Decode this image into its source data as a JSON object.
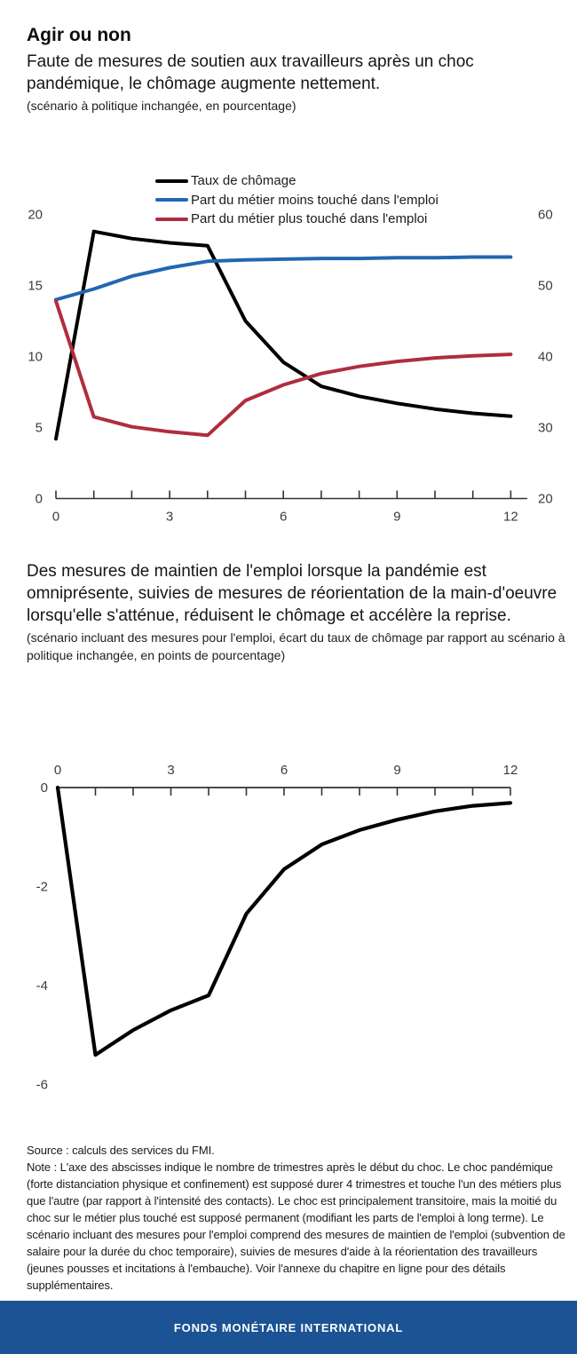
{
  "header": {
    "title": "Agir ou non",
    "subtitle": "Faute de mesures de soutien aux travailleurs après un choc pandémique, le chômage augmente nettement.",
    "caption": "(scénario à politique inchangée, en pourcentage)"
  },
  "section2": {
    "heading": "Des mesures de maintien de l'emploi lorsque la pandémie est omniprésente, suivies de mesures de réorientation de la main-d'oeuvre lorsqu'elle s'atténue, réduisent le chômage et accélère la reprise.",
    "caption": "(scénario incluant des mesures pour l'emploi, écart du taux de chômage par rapport au scénario à politique inchangée, en points de pourcentage)"
  },
  "notes": {
    "source": "Source : calculs des services du FMI.",
    "note": "Note : L'axe des abscisses indique le nombre de trimestres après le début du choc. Le choc pandémique (forte distanciation physique et confinement) est supposé durer 4 trimestres et touche l'un des métiers plus que l'autre (par rapport à l'intensité des contacts). Le choc est principalement transitoire, mais la moitié du choc sur le métier plus touché est supposé permanent (modifiant les parts de l'emploi à long terme). Le scénario incluant des mesures pour l'emploi comprend des mesures de maintien de l'emploi (subvention de salaire pour la durée du choc temporaire), suivies de mesures d'aide à la réorientation des travailleurs (jeunes pousses et incitations à l'embauche). Voir l'annexe du chapitre en ligne pour des détails supplémentaires."
  },
  "footer": {
    "label": "FONDS MONÉTAIRE INTERNATIONAL",
    "bg_color": "#1b5394"
  },
  "colors": {
    "line_black": "#000000",
    "line_blue": "#2167b1",
    "line_red": "#af2d40",
    "axis_line": "#333333",
    "axis_label": "#3c3c3c"
  },
  "chart_data": [
    {
      "type": "line",
      "title": "Faute de mesures de soutien aux travailleurs après un choc pandémique, le chômage augmente nettement.",
      "subtitle": "(scénario à politique inchangée, en pourcentage)",
      "x": [
        0,
        1,
        2,
        3,
        4,
        5,
        6,
        7,
        8,
        9,
        10,
        11,
        12
      ],
      "x_tick_labels": [
        0,
        3,
        6,
        9,
        12
      ],
      "xlabel": "trimestres après le début du choc",
      "left_axis": {
        "ticks": [
          0,
          5,
          10,
          15,
          20
        ],
        "range": [
          0,
          20
        ]
      },
      "right_axis": {
        "ticks": [
          20,
          30,
          40,
          50,
          60
        ],
        "range": [
          20,
          60
        ]
      },
      "legend_position": "top",
      "grid": false,
      "series": [
        {
          "name": "Taux de chômage",
          "axis": "left",
          "color": "#000000",
          "values": [
            4.2,
            18.8,
            18.3,
            18.0,
            17.8,
            12.5,
            9.6,
            7.9,
            7.2,
            6.7,
            6.3,
            6.0,
            5.8
          ]
        },
        {
          "name": "Part du métier moins touché dans l'emploi",
          "axis": "right",
          "color": "#2167b1",
          "values": [
            48.0,
            49.5,
            51.3,
            52.5,
            53.4,
            53.6,
            53.7,
            53.8,
            53.8,
            53.9,
            53.9,
            54.0,
            54.0
          ]
        },
        {
          "name": "Part du métier plus touché dans l'emploi",
          "axis": "right",
          "color": "#af2d40",
          "values": [
            47.8,
            31.5,
            30.1,
            29.4,
            28.9,
            33.8,
            36.0,
            37.6,
            38.6,
            39.3,
            39.8,
            40.1,
            40.3
          ]
        }
      ]
    },
    {
      "type": "line",
      "title": "Des mesures de maintien de l'emploi lorsque la pandémie est omniprésente, suivies de mesures de réorientation de la main-d'oeuvre lorsqu'elle s'atténue, réduisent le chômage et accélère la reprise.",
      "subtitle": "(scénario incluant des mesures pour l'emploi, écart du taux de chômage par rapport au scénario à politique inchangée, en points de pourcentage)",
      "x": [
        0,
        1,
        2,
        3,
        4,
        5,
        6,
        7,
        8,
        9,
        10,
        11,
        12
      ],
      "x_tick_labels": [
        0,
        3,
        6,
        9,
        12
      ],
      "xlabel": "trimestres après le début du choc",
      "x_axis_position": "top",
      "y_axis": {
        "ticks": [
          0,
          -2,
          -4,
          -6
        ],
        "range": [
          -6,
          0
        ]
      },
      "grid": false,
      "series": [
        {
          "name": "Écart du taux de chômage par rapport au scénario à politique inchangée",
          "color": "#000000",
          "values": [
            0,
            -5.4,
            -4.9,
            -4.5,
            -4.2,
            -2.55,
            -1.65,
            -1.15,
            -0.86,
            -0.65,
            -0.48,
            -0.37,
            -0.31
          ]
        }
      ]
    }
  ]
}
